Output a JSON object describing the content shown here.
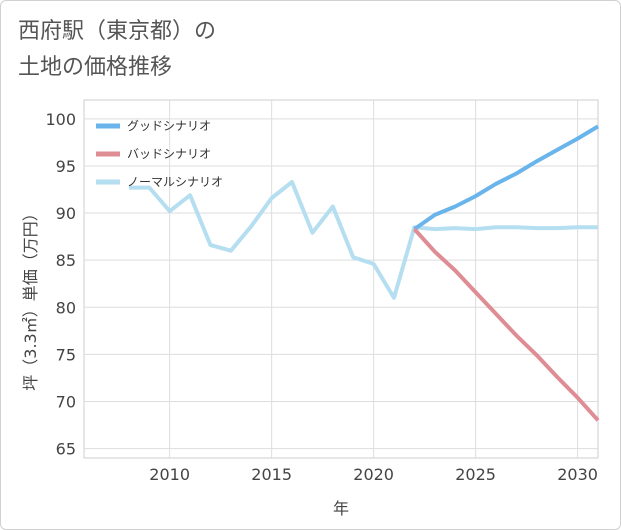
{
  "title": {
    "line1": "西府駅（東京都）の",
    "line2": "土地の価格推移"
  },
  "chart_data": {
    "type": "line",
    "xlabel": "年",
    "ylabel": "坪（3.3㎡）単価（万円）",
    "xlim": [
      2005.8,
      2031
    ],
    "ylim": [
      64,
      102
    ],
    "x_ticks": [
      2010,
      2015,
      2020,
      2025,
      2030
    ],
    "y_ticks": [
      65,
      70,
      75,
      80,
      85,
      90,
      95,
      100
    ],
    "grid": true,
    "legend_position": "top-left",
    "series": [
      {
        "name": "グッドシナリオ",
        "color": "#6ab4ec",
        "x": [
          2022,
          2023,
          2024,
          2025,
          2026,
          2027,
          2028,
          2029,
          2030,
          2031
        ],
        "y": [
          88.3,
          89.8,
          90.7,
          91.8,
          93.1,
          94.2,
          95.5,
          96.7,
          97.9,
          99.2
        ]
      },
      {
        "name": "バッドシナリオ",
        "color": "#de8d94",
        "x": [
          2022,
          2023,
          2024,
          2025,
          2026,
          2027,
          2028,
          2029,
          2030,
          2031
        ],
        "y": [
          88.3,
          85.9,
          83.9,
          81.6,
          79.3,
          77.0,
          74.9,
          72.6,
          70.4,
          68.0
        ]
      },
      {
        "name": "ノーマルシナリオ",
        "color": "#b5def0",
        "x": [
          2008,
          2009,
          2010,
          2011,
          2012,
          2013,
          2014,
          2015,
          2016,
          2017,
          2018,
          2019,
          2020,
          2021,
          2022,
          2023,
          2024,
          2025,
          2026,
          2027,
          2028,
          2029,
          2030,
          2031
        ],
        "y": [
          92.7,
          92.7,
          90.2,
          91.9,
          86.6,
          86.0,
          88.6,
          91.6,
          93.3,
          87.9,
          90.7,
          85.3,
          84.6,
          81.0,
          88.5,
          88.3,
          88.4,
          88.3,
          88.5,
          88.5,
          88.4,
          88.4,
          88.5,
          88.5
        ]
      }
    ]
  }
}
